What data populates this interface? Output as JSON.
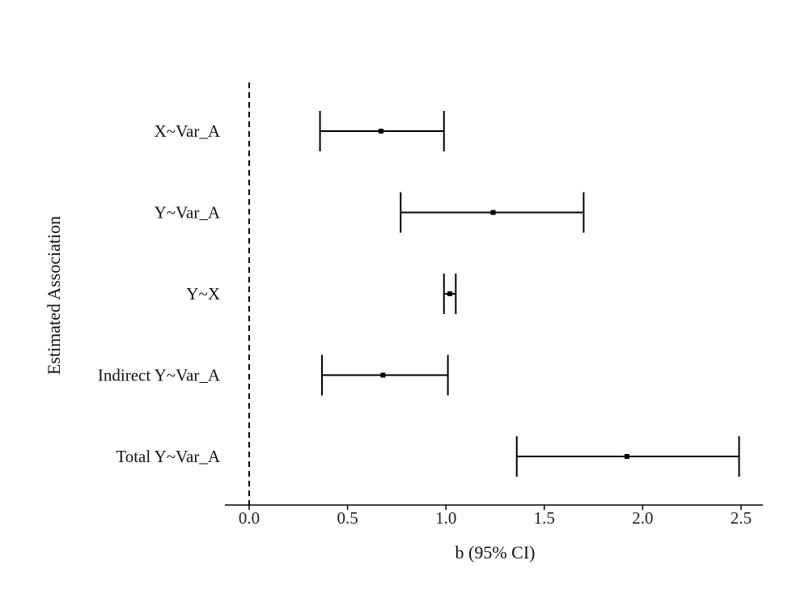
{
  "chart_data": {
    "type": "forest",
    "title": "",
    "xlabel": "b (95% CI)",
    "ylabel": "Estimated Association",
    "xlim": [
      -0.12,
      2.6
    ],
    "xticks": [
      0.0,
      0.5,
      1.0,
      1.5,
      2.0,
      2.5
    ],
    "xtick_labels": [
      "0.0",
      "0.5",
      "1.0",
      "1.5",
      "2.0",
      "2.5"
    ],
    "reference_line": 0.0,
    "categories": [
      "X~Var_A",
      "Y~Var_A",
      "Y~X",
      "Indirect Y~Var_A",
      "Total Y~Var_A"
    ],
    "estimates": [
      0.67,
      1.24,
      1.02,
      0.68,
      1.92
    ],
    "lower": [
      0.36,
      0.77,
      0.99,
      0.37,
      1.36
    ],
    "upper": [
      0.99,
      1.7,
      1.05,
      1.01,
      2.49
    ],
    "grid": false,
    "colors": {
      "line": "#000000",
      "text": "#111111"
    }
  }
}
